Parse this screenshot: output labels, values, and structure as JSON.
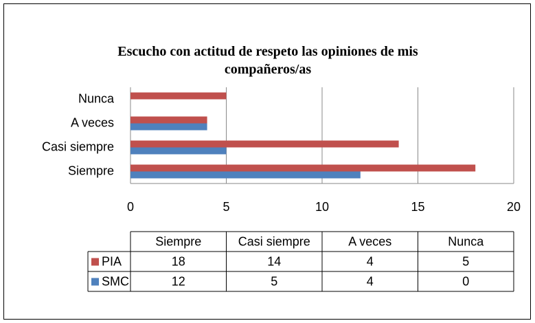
{
  "chart_data": {
    "type": "bar",
    "orientation": "horizontal",
    "title": "Escucho con actitud de respeto las opiniones de mis compañeros/as",
    "categories": [
      "Siempre",
      "Casi siempre",
      "A veces",
      "Nunca"
    ],
    "series": [
      {
        "name": "PIA",
        "color": "#c0504d",
        "values": [
          18,
          14,
          4,
          5
        ]
      },
      {
        "name": "SMC",
        "color": "#4f81bd",
        "values": [
          12,
          5,
          4,
          0
        ]
      }
    ],
    "xlim": [
      0,
      20
    ],
    "xticks": [
      0,
      5,
      10,
      15,
      20
    ],
    "grid": true,
    "data_table": true
  }
}
